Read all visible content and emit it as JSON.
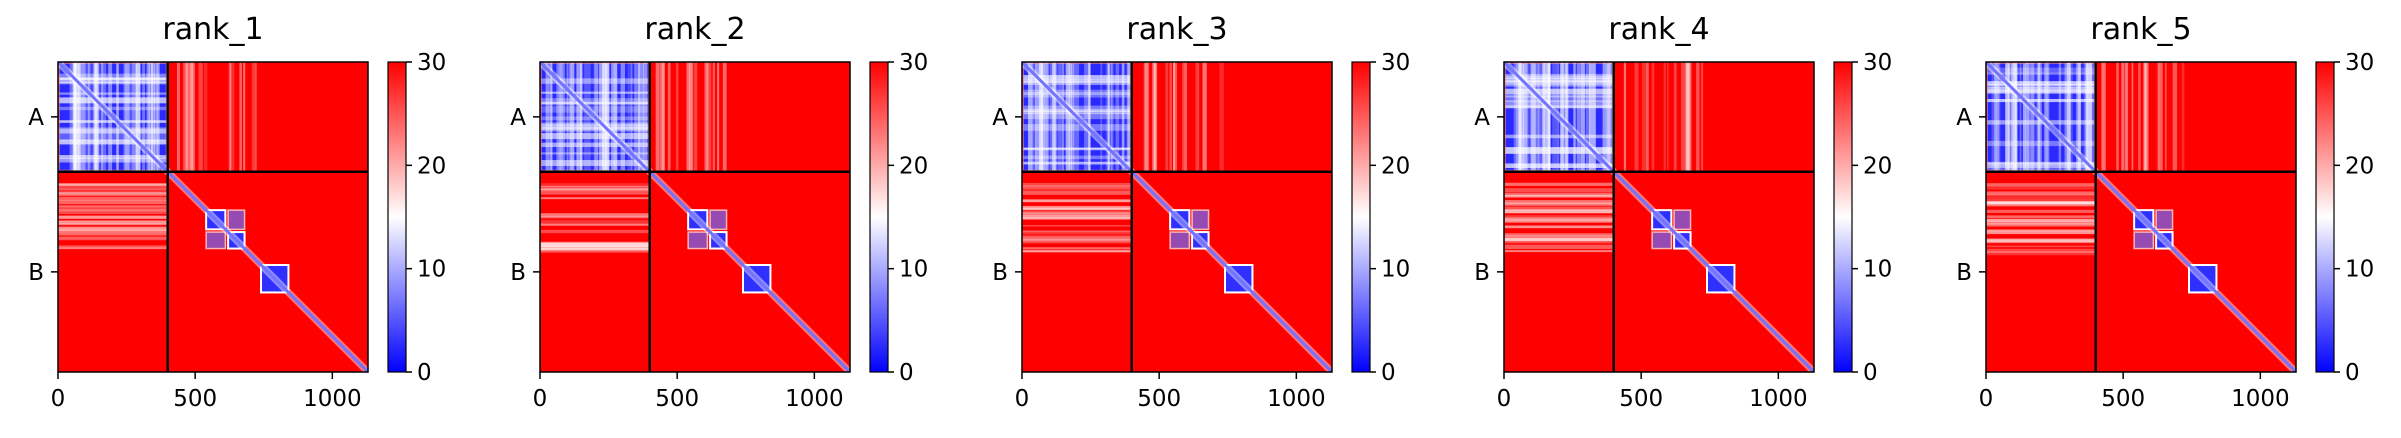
{
  "chart_data": [
    {
      "type": "heatmap",
      "title": "rank_1",
      "chains": [
        "A",
        "B"
      ],
      "chain_lengths": [
        400,
        730
      ],
      "x_ticks": [
        0,
        500,
        1000
      ],
      "colorbar_ticks": [
        0,
        10,
        20,
        30
      ],
      "vmin": 0,
      "vmax": 30,
      "colormap": [
        "#0000ff",
        "#ffffff",
        "#ff0000"
      ]
    },
    {
      "type": "heatmap",
      "title": "rank_2",
      "chains": [
        "A",
        "B"
      ],
      "chain_lengths": [
        400,
        730
      ],
      "x_ticks": [
        0,
        500,
        1000
      ],
      "colorbar_ticks": [
        0,
        10,
        20,
        30
      ],
      "vmin": 0,
      "vmax": 30,
      "colormap": [
        "#0000ff",
        "#ffffff",
        "#ff0000"
      ]
    },
    {
      "type": "heatmap",
      "title": "rank_3",
      "chains": [
        "A",
        "B"
      ],
      "chain_lengths": [
        400,
        730
      ],
      "x_ticks": [
        0,
        500,
        1000
      ],
      "colorbar_ticks": [
        0,
        10,
        20,
        30
      ],
      "vmin": 0,
      "vmax": 30,
      "colormap": [
        "#0000ff",
        "#ffffff",
        "#ff0000"
      ]
    },
    {
      "type": "heatmap",
      "title": "rank_4",
      "chains": [
        "A",
        "B"
      ],
      "chain_lengths": [
        400,
        730
      ],
      "x_ticks": [
        0,
        500,
        1000
      ],
      "colorbar_ticks": [
        0,
        10,
        20,
        30
      ],
      "vmin": 0,
      "vmax": 30,
      "colormap": [
        "#0000ff",
        "#ffffff",
        "#ff0000"
      ]
    },
    {
      "type": "heatmap",
      "title": "rank_5",
      "chains": [
        "A",
        "B"
      ],
      "chain_lengths": [
        400,
        730
      ],
      "x_ticks": [
        0,
        500,
        1000
      ],
      "colorbar_ticks": [
        0,
        10,
        20,
        30
      ],
      "vmin": 0,
      "vmax": 30,
      "colormap": [
        "#0000ff",
        "#ffffff",
        "#ff0000"
      ]
    }
  ]
}
